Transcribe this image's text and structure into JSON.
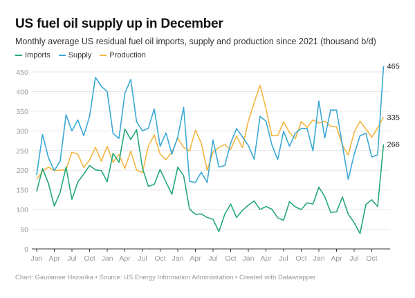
{
  "header": {
    "title": "US fuel oil supply up in December",
    "subtitle": "Monthly average US residual fuel oil imports, supply and production since 2021 (thousand b/d)"
  },
  "footer": {
    "credit": "Chart: Gautamee Hazarika • Source: US Energy Information Administration  • Created with Datawrapper"
  },
  "chart_data": {
    "type": "line",
    "title": "US fuel oil supply up in December",
    "subtitle": "Monthly average US residual fuel oil imports, supply and production since 2021 (thousand b/d)",
    "xlabel": "",
    "ylabel": "thousand b/d",
    "ylim": [
      0,
      450
    ],
    "yticks": [
      0,
      50,
      100,
      150,
      200,
      250,
      300,
      350,
      400,
      450
    ],
    "grid": true,
    "legend_position": "top-left",
    "x_start": "Jan 2021",
    "x_end": "Dec 2025",
    "x_tick_labels": [
      "Jan",
      "Apr",
      "Jul",
      "Oct",
      "Jan",
      "Apr",
      "Jul",
      "Oct",
      "Jan",
      "Apr",
      "Jul",
      "Oct",
      "Jan",
      "Apr",
      "Jul",
      "Oct",
      "Jan",
      "Apr",
      "Jul",
      "Oct"
    ],
    "x_tick_every_months": 3,
    "series": [
      {
        "name": "Imports",
        "color": "#25a879",
        "end_label": "266",
        "values": [
          146,
          204,
          167,
          109,
          144,
          208,
          126,
          170,
          190,
          212,
          201,
          199,
          171,
          243,
          220,
          305,
          278,
          303,
          205,
          159,
          164,
          202,
          170,
          139,
          208,
          186,
          101,
          88,
          89,
          80,
          75,
          44,
          88,
          114,
          80,
          98,
          111,
          122,
          100,
          108,
          101,
          79,
          73,
          120,
          107,
          100,
          117,
          114,
          157,
          133,
          93,
          94,
          132,
          88,
          67,
          39,
          113,
          125,
          108,
          266
        ]
      },
      {
        "name": "Supply",
        "color": "#3aa8d4",
        "end_label": "465",
        "values": [
          188,
          291,
          232,
          199,
          223,
          341,
          300,
          328,
          288,
          337,
          436,
          413,
          400,
          293,
          281,
          395,
          431,
          323,
          300,
          307,
          356,
          261,
          295,
          241,
          285,
          360,
          172,
          169,
          195,
          169,
          277,
          208,
          212,
          269,
          306,
          285,
          263,
          228,
          337,
          325,
          265,
          227,
          299,
          261,
          294,
          306,
          306,
          249,
          376,
          282,
          353,
          353,
          264,
          177,
          240,
          288,
          294,
          234,
          239,
          465
        ]
      },
      {
        "name": "Production",
        "color": "#f2b640",
        "end_label": "335",
        "values": [
          177,
          197,
          208,
          199,
          200,
          202,
          246,
          241,
          207,
          226,
          258,
          223,
          261,
          220,
          240,
          204,
          249,
          200,
          194,
          261,
          290,
          241,
          227,
          246,
          281,
          258,
          249,
          302,
          269,
          200,
          246,
          258,
          265,
          253,
          287,
          257,
          325,
          372,
          416,
          357,
          288,
          288,
          323,
          296,
          280,
          324,
          309,
          328,
          320,
          325,
          312,
          310,
          264,
          239,
          296,
          325,
          305,
          284,
          308,
          335
        ]
      }
    ]
  }
}
